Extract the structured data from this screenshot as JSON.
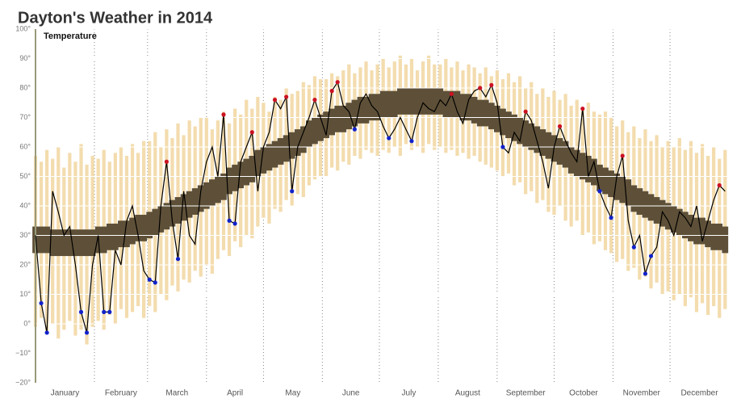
{
  "chart_data": {
    "type": "weather",
    "title": "Dayton's Weather in 2014",
    "subtitle": "Temperature",
    "x": [
      1,
      4,
      7,
      10,
      13,
      16,
      19,
      22,
      25,
      28,
      31,
      34,
      37,
      40,
      43,
      46,
      49,
      52,
      55,
      58,
      61,
      64,
      67,
      70,
      73,
      76,
      79,
      82,
      85,
      88,
      91,
      94,
      97,
      100,
      103,
      106,
      109,
      112,
      115,
      118,
      121,
      124,
      127,
      130,
      133,
      136,
      139,
      142,
      145,
      148,
      151,
      154,
      157,
      160,
      163,
      166,
      169,
      172,
      175,
      178,
      181,
      184,
      187,
      190,
      193,
      196,
      199,
      202,
      205,
      208,
      211,
      214,
      217,
      220,
      223,
      226,
      229,
      232,
      235,
      238,
      241,
      244,
      247,
      250,
      253,
      256,
      259,
      262,
      265,
      268,
      271,
      274,
      277,
      280,
      283,
      286,
      289,
      292,
      295,
      298,
      301,
      304,
      307,
      310,
      313,
      316,
      319,
      322,
      325,
      328,
      331,
      334,
      337,
      340,
      343,
      346,
      349,
      352,
      355,
      358,
      361,
      364
    ],
    "record_low": [
      -1,
      2,
      -3,
      0,
      -5,
      -2,
      1,
      -4,
      -2,
      -7,
      -1,
      1,
      -2,
      3,
      0,
      5,
      2,
      4,
      6,
      2,
      6,
      4,
      10,
      8,
      13,
      11,
      15,
      14,
      18,
      16,
      20,
      17,
      22,
      25,
      23,
      28,
      26,
      30,
      29,
      33,
      36,
      34,
      39,
      38,
      42,
      40,
      44,
      43,
      47,
      49,
      50,
      50,
      53,
      52,
      55,
      54,
      57,
      56,
      59,
      58,
      57,
      59,
      58,
      60,
      57,
      61,
      59,
      60,
      58,
      61,
      59,
      60,
      58,
      59,
      57,
      58,
      56,
      57,
      55,
      54,
      53,
      52,
      50,
      51,
      47,
      48,
      44,
      45,
      41,
      42,
      38,
      37,
      40,
      35,
      33,
      35,
      30,
      31,
      27,
      28,
      25,
      24,
      21,
      22,
      18,
      19,
      15,
      16,
      12,
      14,
      10,
      11,
      8,
      10,
      6,
      9,
      4,
      7,
      3,
      6,
      2,
      5
    ],
    "record_high": [
      57,
      55,
      59,
      56,
      60,
      53,
      58,
      55,
      61,
      54,
      57,
      56,
      59,
      55,
      58,
      60,
      57,
      61,
      58,
      62,
      62,
      65,
      60,
      66,
      63,
      68,
      64,
      69,
      67,
      70,
      70,
      66,
      69,
      72,
      68,
      73,
      71,
      76,
      73,
      77,
      75,
      72,
      77,
      76,
      80,
      78,
      79,
      82,
      81,
      84,
      83,
      83,
      85,
      84,
      86,
      88,
      85,
      87,
      89,
      86,
      88,
      90,
      87,
      89,
      91,
      88,
      90,
      86,
      89,
      91,
      88,
      88,
      90,
      87,
      89,
      86,
      88,
      87,
      85,
      87,
      84,
      86,
      83,
      85,
      82,
      84,
      80,
      82,
      78,
      80,
      77,
      79,
      76,
      78,
      74,
      76,
      73,
      75,
      72,
      71,
      72,
      70,
      67,
      69,
      65,
      67,
      63,
      66,
      62,
      64,
      60,
      62,
      60,
      63,
      59,
      62,
      58,
      61,
      57,
      60,
      56,
      59
    ],
    "normal_low": [
      24,
      24,
      24,
      23,
      23,
      23,
      23,
      23,
      23,
      23,
      23,
      24,
      24,
      25,
      25,
      26,
      26,
      27,
      28,
      28,
      29,
      30,
      31,
      32,
      33,
      34,
      35,
      36,
      37,
      38,
      39,
      40,
      41,
      42,
      44,
      45,
      46,
      47,
      48,
      50,
      51,
      52,
      53,
      54,
      55,
      56,
      57,
      58,
      60,
      61,
      62,
      63,
      64,
      65,
      65,
      66,
      67,
      68,
      68,
      69,
      69,
      70,
      70,
      70,
      71,
      71,
      71,
      71,
      71,
      71,
      71,
      71,
      70,
      70,
      70,
      69,
      69,
      68,
      67,
      67,
      66,
      65,
      64,
      63,
      62,
      61,
      60,
      59,
      58,
      57,
      56,
      55,
      54,
      53,
      51,
      50,
      49,
      48,
      47,
      45,
      44,
      43,
      42,
      41,
      40,
      38,
      37,
      36,
      35,
      34,
      33,
      32,
      31,
      30,
      29,
      28,
      27,
      27,
      26,
      25,
      25,
      24
    ],
    "normal_high": [
      33,
      33,
      33,
      32,
      32,
      32,
      32,
      32,
      32,
      32,
      32,
      33,
      33,
      34,
      34,
      35,
      35,
      36,
      37,
      37,
      38,
      39,
      40,
      41,
      42,
      43,
      44,
      45,
      46,
      47,
      48,
      49,
      50,
      51,
      53,
      54,
      55,
      56,
      57,
      59,
      60,
      61,
      62,
      63,
      64,
      65,
      66,
      67,
      69,
      70,
      71,
      72,
      73,
      74,
      74,
      75,
      76,
      77,
      77,
      78,
      78,
      79,
      79,
      79,
      80,
      80,
      80,
      80,
      80,
      80,
      80,
      80,
      79,
      79,
      79,
      78,
      78,
      77,
      76,
      76,
      75,
      74,
      73,
      72,
      71,
      70,
      69,
      68,
      67,
      66,
      65,
      64,
      63,
      62,
      60,
      59,
      58,
      57,
      56,
      54,
      53,
      52,
      51,
      50,
      49,
      47,
      46,
      45,
      44,
      43,
      42,
      41,
      40,
      39,
      38,
      37,
      36,
      36,
      35,
      34,
      34,
      33
    ],
    "temperature": [
      30,
      7,
      -3,
      45,
      38,
      30,
      33,
      20,
      4,
      -3,
      20,
      30,
      4,
      4,
      25,
      20,
      35,
      40,
      30,
      18,
      15,
      14,
      40,
      55,
      35,
      22,
      45,
      30,
      27,
      45,
      55,
      60,
      50,
      71,
      35,
      34,
      55,
      60,
      65,
      45,
      60,
      65,
      76,
      73,
      77,
      45,
      60,
      65,
      70,
      76,
      70,
      64,
      79,
      82,
      74,
      72,
      66,
      75,
      78,
      74,
      72,
      67,
      63,
      66,
      70,
      66,
      62,
      70,
      75,
      73,
      72,
      76,
      74,
      78,
      72,
      68,
      76,
      79,
      80,
      77,
      81,
      75,
      60,
      58,
      65,
      62,
      72,
      69,
      62,
      55,
      46,
      60,
      67,
      62,
      58,
      55,
      73,
      50,
      55,
      45,
      40,
      36,
      50,
      57,
      35,
      26,
      30,
      17,
      23,
      26,
      38,
      35,
      30,
      38,
      36,
      33,
      40,
      28,
      35,
      42,
      47,
      45
    ],
    "record_color": "#f3dcae",
    "normal_color": "#5e5038",
    "line_color": "#000000",
    "record_highs": {
      "color": "#cc1122",
      "x": [
        70,
        100,
        115,
        127,
        133,
        148,
        157,
        160,
        220,
        235,
        241,
        259,
        277,
        289,
        310,
        361
      ],
      "values": [
        55,
        71,
        65,
        76,
        77,
        76,
        79,
        82,
        78,
        80,
        81,
        72,
        67,
        73,
        57,
        47
      ]
    },
    "record_lows": {
      "color": "#1122cc",
      "x": [
        4,
        7,
        25,
        28,
        37,
        40,
        61,
        64,
        76,
        103,
        106,
        136,
        169,
        187,
        199,
        247,
        298,
        304,
        316,
        322,
        325
      ],
      "values": [
        7,
        -3,
        4,
        -3,
        4,
        4,
        15,
        14,
        22,
        35,
        34,
        45,
        66,
        63,
        62,
        60,
        45,
        36,
        26,
        17,
        23
      ]
    },
    "xlim": [
      1,
      366
    ],
    "xticks": [
      {
        "value": 1,
        "label": "January"
      },
      {
        "value": 32,
        "label": "February"
      },
      {
        "value": 60,
        "label": "March"
      },
      {
        "value": 91,
        "label": "April"
      },
      {
        "value": 121,
        "label": "May"
      },
      {
        "value": 152,
        "label": "June"
      },
      {
        "value": 182,
        "label": "July"
      },
      {
        "value": 213,
        "label": "August"
      },
      {
        "value": 244,
        "label": "September"
      },
      {
        "value": 274,
        "label": "October"
      },
      {
        "value": 305,
        "label": "November"
      },
      {
        "value": 335,
        "label": "December"
      }
    ],
    "ylim": [
      -20,
      100
    ],
    "yticks": [
      {
        "value": -20,
        "label": "−20°"
      },
      {
        "value": -10,
        "label": "−10°"
      },
      {
        "value": 0,
        "label": "0°"
      },
      {
        "value": 10,
        "label": "10°"
      },
      {
        "value": 20,
        "label": "20°"
      },
      {
        "value": 30,
        "label": "30°"
      },
      {
        "value": 40,
        "label": "40°"
      },
      {
        "value": 50,
        "label": "50°"
      },
      {
        "value": 60,
        "label": "60°"
      },
      {
        "value": 70,
        "label": "70°"
      },
      {
        "value": 80,
        "label": "80°"
      },
      {
        "value": 90,
        "label": "90°"
      },
      {
        "value": 100,
        "label": "100°"
      }
    ],
    "grid": true
  }
}
